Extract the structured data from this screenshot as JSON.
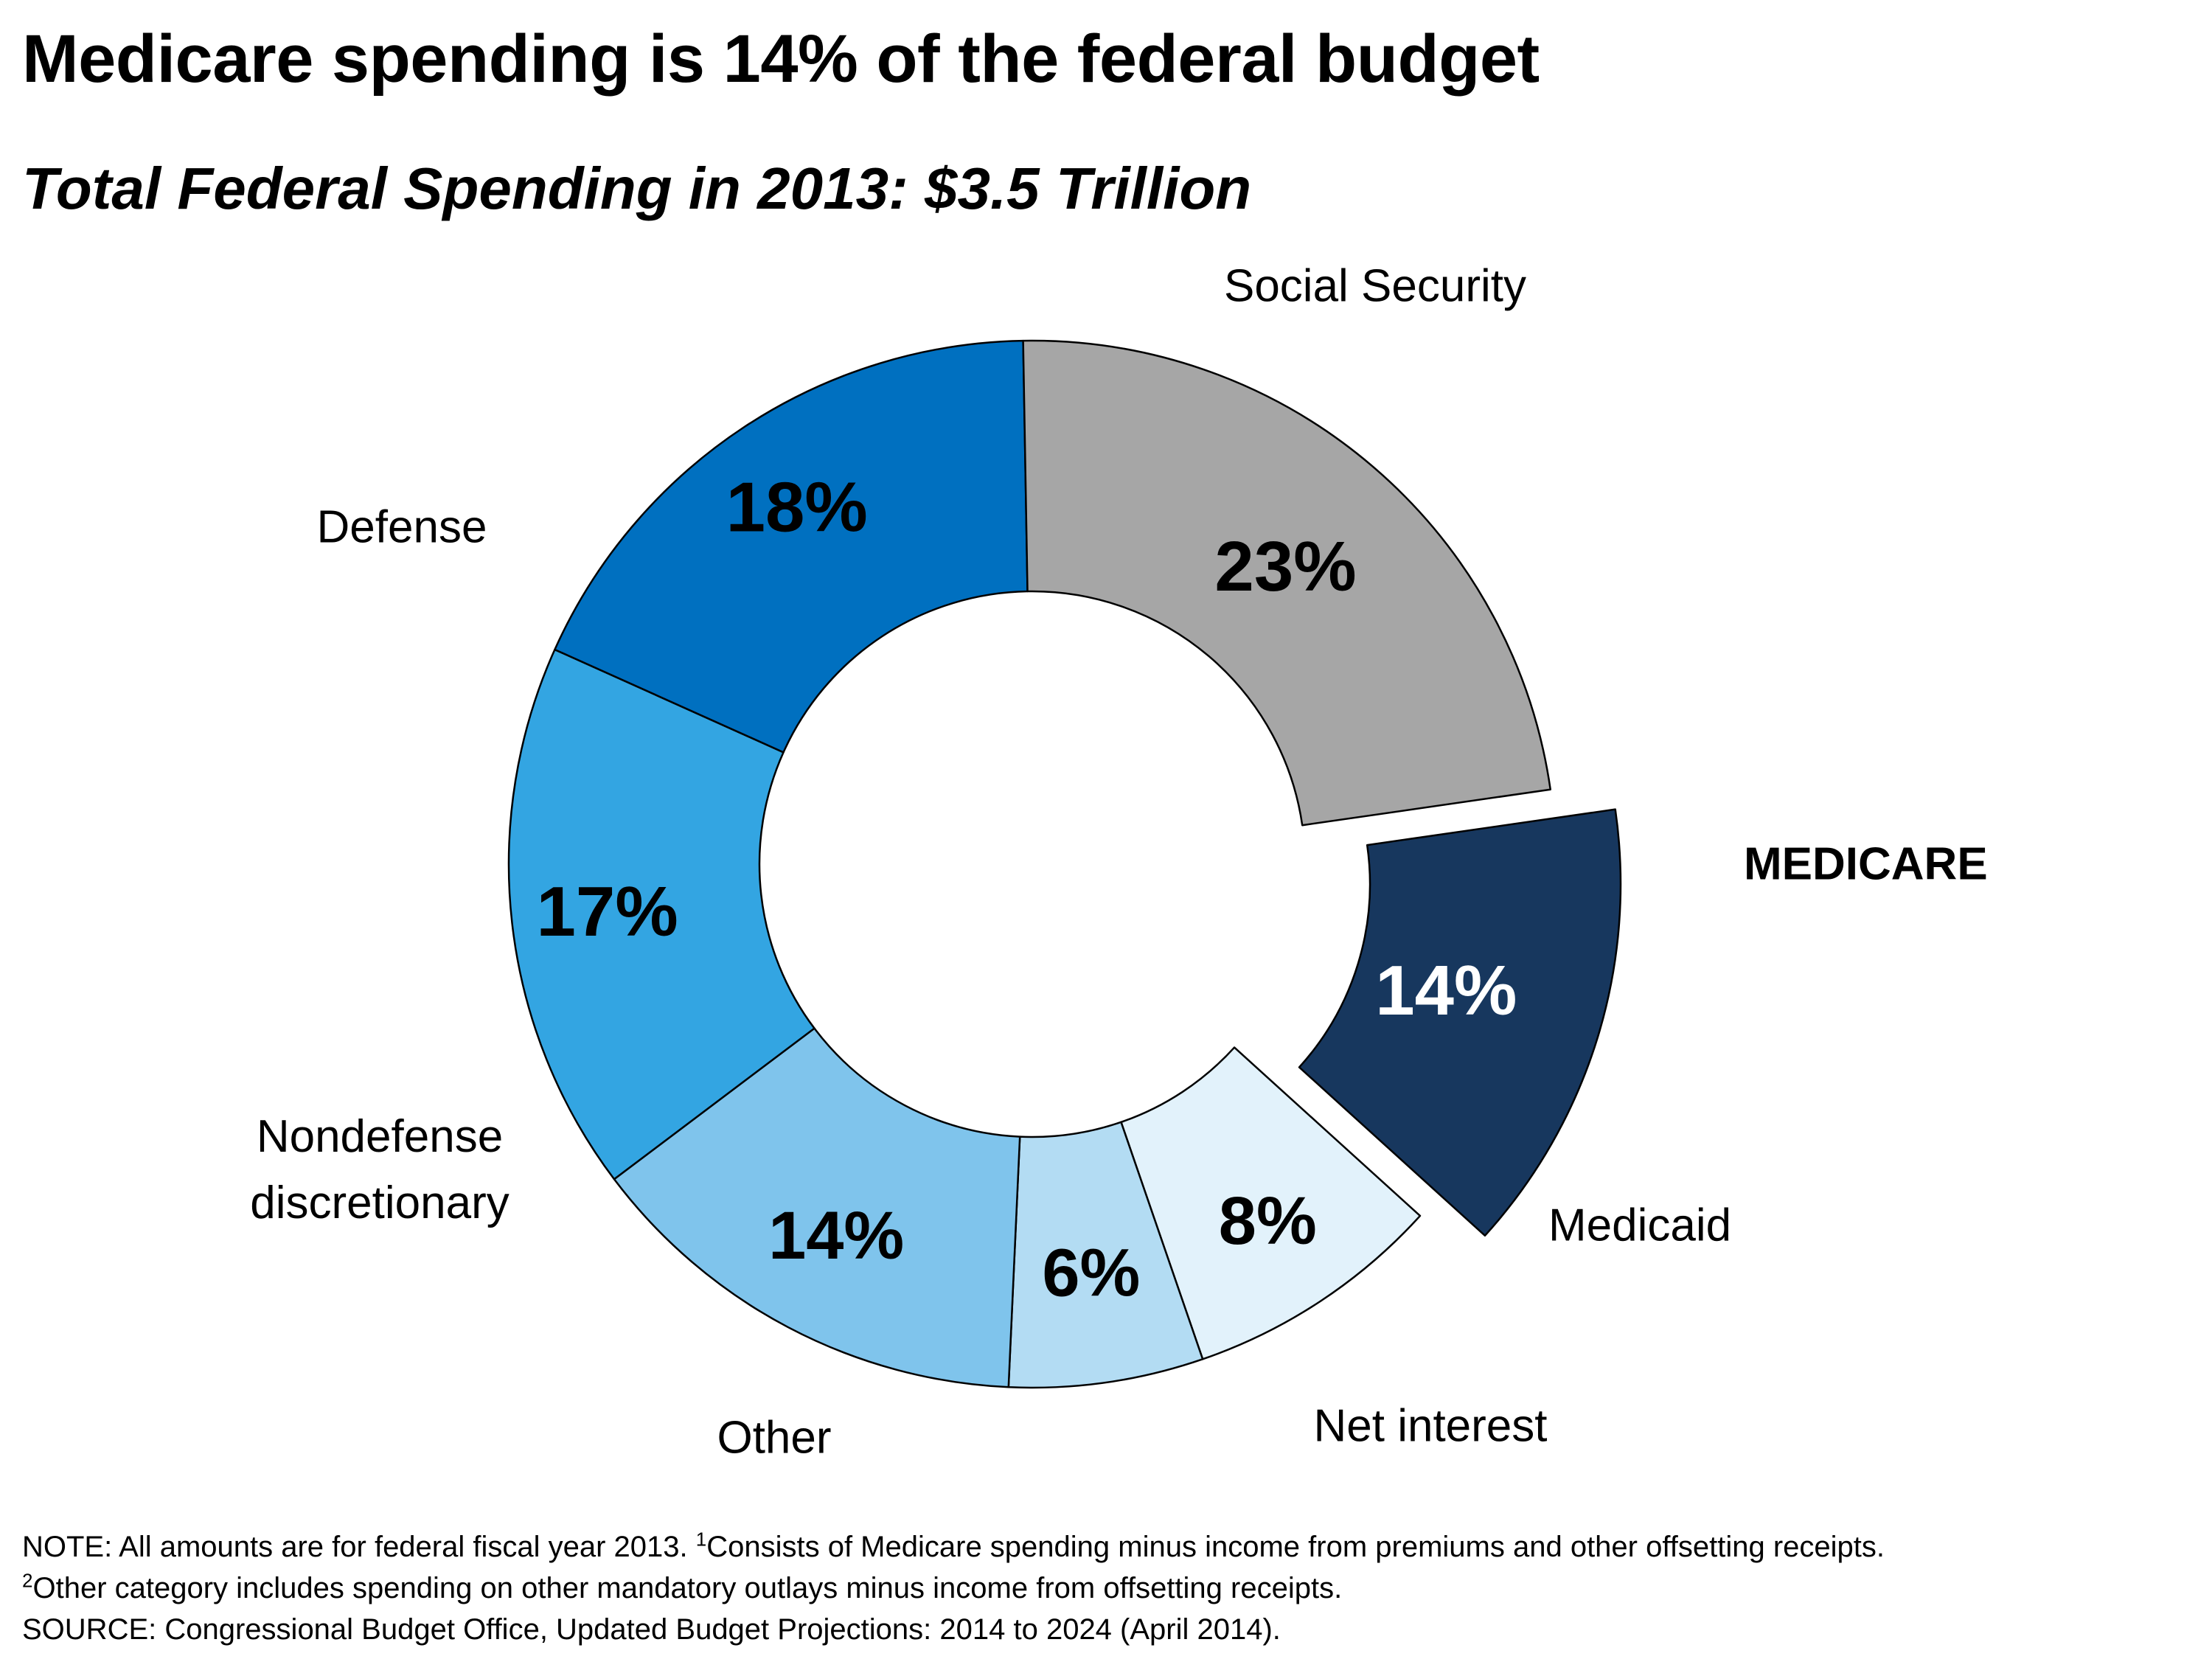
{
  "chart_data": {
    "type": "pie",
    "style": "donut",
    "title": "Medicare spending is 14% of the federal budget",
    "subtitle": "Total Federal Spending in 2013: $3.5 Trillion",
    "categories": [
      "MEDICARE",
      "Medicaid",
      "Net interest",
      "Other",
      "Nondefense discretionary",
      "Defense",
      "Social Security"
    ],
    "values": [
      14,
      8,
      6,
      14,
      17,
      18,
      23
    ],
    "value_labels": [
      "14%",
      "8%",
      "6%",
      "14%",
      "17%",
      "18%",
      "23%"
    ],
    "colors": [
      "#17375e",
      "#e2f2fb",
      "#b3dcf3",
      "#7fc4ec",
      "#33a5e2",
      "#0070c0",
      "#a6a6a6"
    ],
    "label_colors": [
      "#ffffff",
      "#000000",
      "#000000",
      "#000000",
      "#000000",
      "#000000",
      "#000000"
    ],
    "exploded": [
      "MEDICARE"
    ],
    "legend": "none"
  },
  "notes": {
    "line1_a": "NOTE: All amounts are for federal fiscal year 2013.  ",
    "line1_sup": "1",
    "line1_b": "Consists of Medicare spending minus income from premiums and other offsetting receipts.",
    "line2_sup": "2",
    "line2_b": "Other category includes spending on other mandatory outlays minus income from offsetting receipts.",
    "source": "SOURCE: Congressional Budget Office, Updated Budget Projections: 2014 to 2024 (April 2014)."
  }
}
